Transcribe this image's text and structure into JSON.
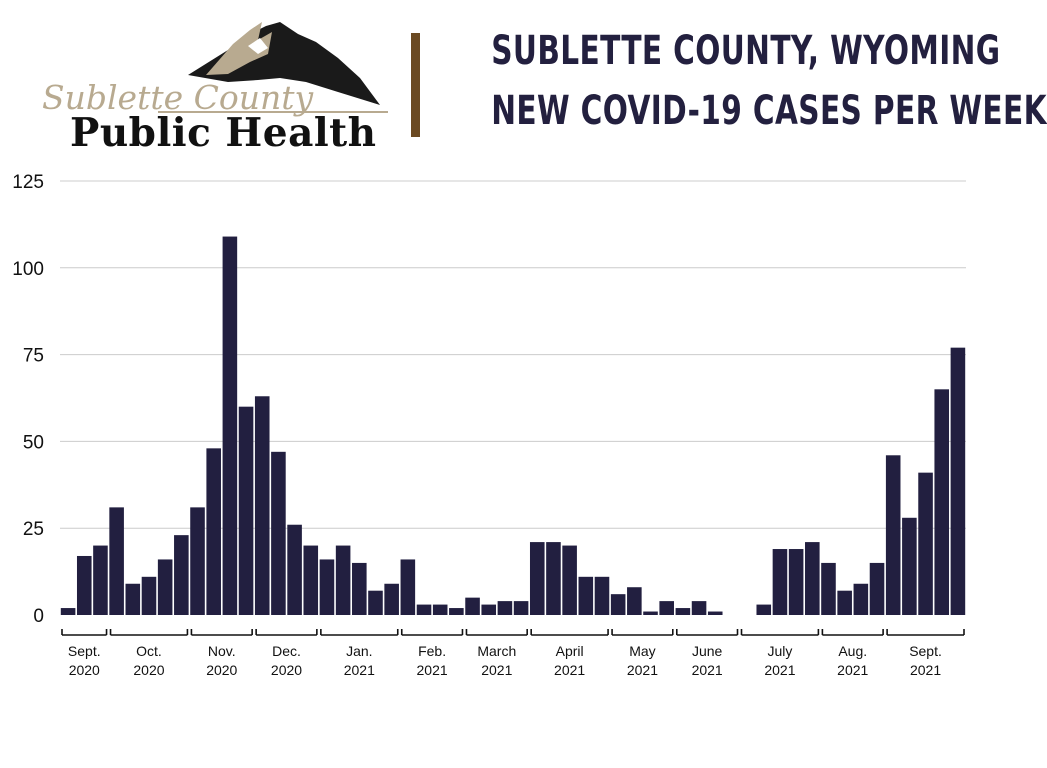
{
  "logo": {
    "script_text": "Sublette County",
    "main_text": "Public Health"
  },
  "title": {
    "line1": "SUBLETTE COUNTY, WYOMING",
    "line2": "NEW COVID-19 CASES PER WEEK"
  },
  "colors": {
    "bar": "#221f40",
    "title": "#23203f",
    "divider": "#6b4a22",
    "grid": "#cccccc"
  },
  "chart_data": {
    "type": "bar",
    "ylim": [
      0,
      125
    ],
    "yticks": [
      0,
      25,
      50,
      75,
      100,
      125
    ],
    "grid": true,
    "legend": "none",
    "values": [
      2,
      17,
      20,
      31,
      9,
      11,
      16,
      23,
      31,
      48,
      109,
      60,
      63,
      47,
      26,
      20,
      16,
      20,
      15,
      7,
      9,
      16,
      3,
      3,
      2,
      5,
      3,
      4,
      4,
      21,
      21,
      20,
      11,
      11,
      6,
      8,
      1,
      4,
      2,
      4,
      1,
      0,
      0,
      3,
      19,
      19,
      21,
      15,
      7,
      9,
      15,
      46,
      28,
      41,
      65,
      77
    ],
    "month_groups": [
      {
        "month": "Sept.",
        "year": "2020",
        "weeks": 3
      },
      {
        "month": "Oct.",
        "year": "2020",
        "weeks": 5
      },
      {
        "month": "Nov.",
        "year": "2020",
        "weeks": 4
      },
      {
        "month": "Dec.",
        "year": "2020",
        "weeks": 4
      },
      {
        "month": "Jan.",
        "year": "2021",
        "weeks": 5
      },
      {
        "month": "Feb.",
        "year": "2021",
        "weeks": 4
      },
      {
        "month": "March",
        "year": "2021",
        "weeks": 4
      },
      {
        "month": "April",
        "year": "2021",
        "weeks": 5
      },
      {
        "month": "May",
        "year": "2021",
        "weeks": 4
      },
      {
        "month": "June",
        "year": "2021",
        "weeks": 4
      },
      {
        "month": "July",
        "year": "2021",
        "weeks": 5
      },
      {
        "month": "Aug.",
        "year": "2021",
        "weeks": 4
      },
      {
        "month": "Sept.",
        "year": "2021",
        "weeks": 5
      }
    ]
  }
}
